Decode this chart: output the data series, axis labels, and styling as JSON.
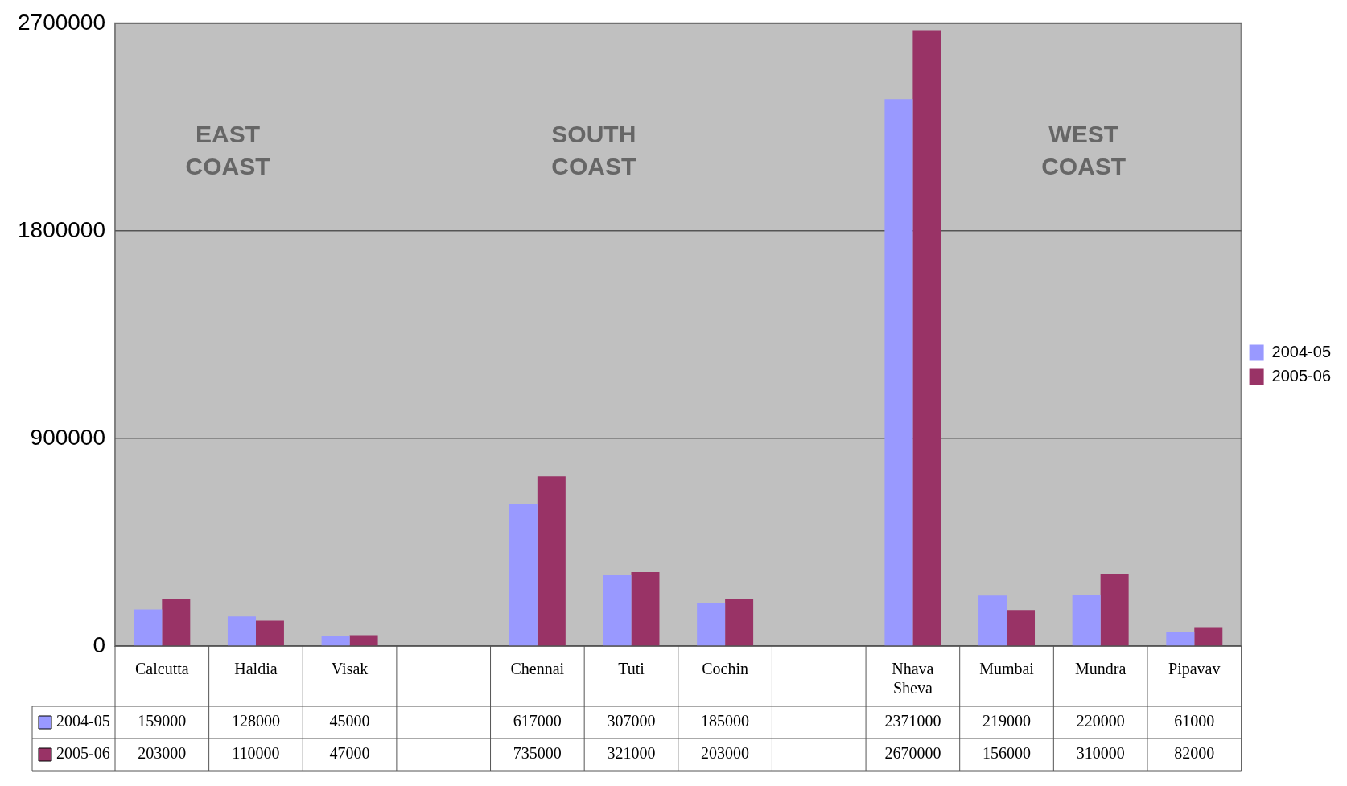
{
  "chart_data": {
    "type": "bar",
    "categories": [
      "Calcutta",
      "Haldia",
      "Visak",
      null,
      "Chennai",
      "Tuti",
      "Cochin",
      null,
      "Nhava Sheva",
      "Mumbai",
      "Mundra",
      "Pipavav"
    ],
    "series": [
      {
        "name": "2004-05",
        "color": "#9999ff",
        "values": [
          159000,
          128000,
          45000,
          null,
          617000,
          307000,
          185000,
          null,
          2371000,
          219000,
          220000,
          61000
        ]
      },
      {
        "name": "2005-06",
        "color": "#993366",
        "values": [
          203000,
          110000,
          47000,
          null,
          735000,
          321000,
          203000,
          null,
          2670000,
          156000,
          310000,
          82000
        ]
      }
    ],
    "ylim": [
      0,
      2700000
    ],
    "yticks": [
      0,
      900000,
      1800000,
      2700000
    ],
    "grid": "y",
    "legend": "right",
    "data_labels": true,
    "annotations": [
      "EAST\nCOAST",
      "SOUTH\nCOAST",
      "WEST\nCOAST"
    ]
  }
}
